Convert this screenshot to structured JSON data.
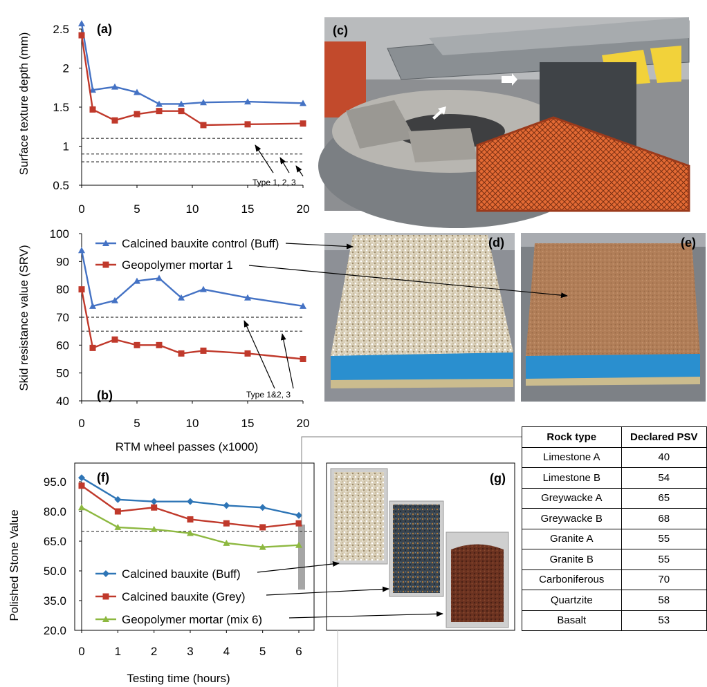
{
  "chart_data": [
    {
      "id": "a",
      "type": "line",
      "panel_label": "(a)",
      "ylabel": "Surface texture depth (mm)",
      "xlabel": "",
      "ylim": [
        0.5,
        2.5
      ],
      "xlim": [
        0,
        20
      ],
      "yticks": [
        "0.5",
        "1",
        "1.5",
        "2",
        "2.5"
      ],
      "xticks": [
        "0",
        "5",
        "10",
        "15",
        "20"
      ],
      "x": [
        0,
        1,
        3,
        5,
        7,
        9,
        11,
        15,
        20
      ],
      "series": [
        {
          "values": [
            2.57,
            1.72,
            1.76,
            1.69,
            1.54,
            1.54,
            1.56,
            1.57,
            1.55
          ],
          "color": "#4472C4",
          "marker": "triangle"
        },
        {
          "values": [
            2.42,
            1.47,
            1.33,
            1.41,
            1.45,
            1.45,
            1.27,
            1.28,
            1.29
          ],
          "color": "#C0392B",
          "marker": "square"
        }
      ],
      "thresholds": [
        1.1,
        0.9,
        0.8
      ],
      "annotation": "Type 1, 2, 3"
    },
    {
      "id": "b",
      "type": "line",
      "panel_label": "(b)",
      "ylabel": "Skid resistance value (SRV)",
      "xlabel": "RTM wheel passes (x1000)",
      "ylim": [
        40,
        100
      ],
      "xlim": [
        0,
        20
      ],
      "yticks": [
        "40",
        "50",
        "60",
        "70",
        "80",
        "90",
        "100"
      ],
      "xticks": [
        "0",
        "5",
        "10",
        "15",
        "20"
      ],
      "x": [
        0,
        1,
        3,
        5,
        7,
        9,
        11,
        15,
        20
      ],
      "series": [
        {
          "name": "Calcined bauxite control (Buff)",
          "values": [
            94,
            74,
            76,
            83,
            84,
            77,
            80,
            77,
            74
          ],
          "color": "#4472C4",
          "marker": "triangle"
        },
        {
          "name": "Geopolymer mortar 1",
          "values": [
            80,
            59,
            62,
            60,
            60,
            57,
            58,
            57,
            55
          ],
          "color": "#C0392B",
          "marker": "square"
        }
      ],
      "thresholds": [
        70,
        65
      ],
      "annotation": "Type 1&2, 3"
    },
    {
      "id": "f",
      "type": "line",
      "panel_label": "(f)",
      "ylabel": "Polished Stone Value",
      "xlabel": "Testing time (hours)",
      "ylim": [
        20,
        95
      ],
      "xlim": [
        0,
        6
      ],
      "yticks": [
        "20.0",
        "35.0",
        "50.0",
        "65.0",
        "80.0",
        "95.0"
      ],
      "xticks": [
        "0",
        "1",
        "2",
        "3",
        "4",
        "5",
        "6"
      ],
      "x": [
        0,
        1,
        2,
        3,
        4,
        5,
        6
      ],
      "series": [
        {
          "name": "Calcined bauxite (Buff)",
          "values": [
            97,
            86,
            85,
            85,
            83,
            82,
            78
          ],
          "color": "#2E75B6",
          "marker": "diamond"
        },
        {
          "name": "Calcined bauxite (Grey)",
          "values": [
            93,
            80,
            82,
            76,
            74,
            72,
            74
          ],
          "color": "#C0392B",
          "marker": "square"
        },
        {
          "name": "Geopolymer mortar (mix 6)",
          "values": [
            82,
            72,
            71,
            69,
            64,
            62,
            63
          ],
          "color": "#8DB840",
          "marker": "triangle"
        }
      ],
      "thresholds": [
        70
      ]
    }
  ],
  "panels": {
    "c_label": "(c)",
    "d_label": "(d)",
    "e_label": "(e)",
    "g_label": "(g)"
  },
  "psv_table": {
    "headers": [
      "Rock type",
      "Declared PSV"
    ],
    "rows": [
      [
        "Limestone A",
        "40"
      ],
      [
        "Limestone B",
        "54"
      ],
      [
        "Greywacke A",
        "65"
      ],
      [
        "Greywacke B",
        "68"
      ],
      [
        "Granite A",
        "55"
      ],
      [
        "Granite B",
        "55"
      ],
      [
        "Carboniferous",
        "70"
      ],
      [
        "Quartzite",
        "58"
      ],
      [
        "Basalt",
        "53"
      ]
    ]
  }
}
